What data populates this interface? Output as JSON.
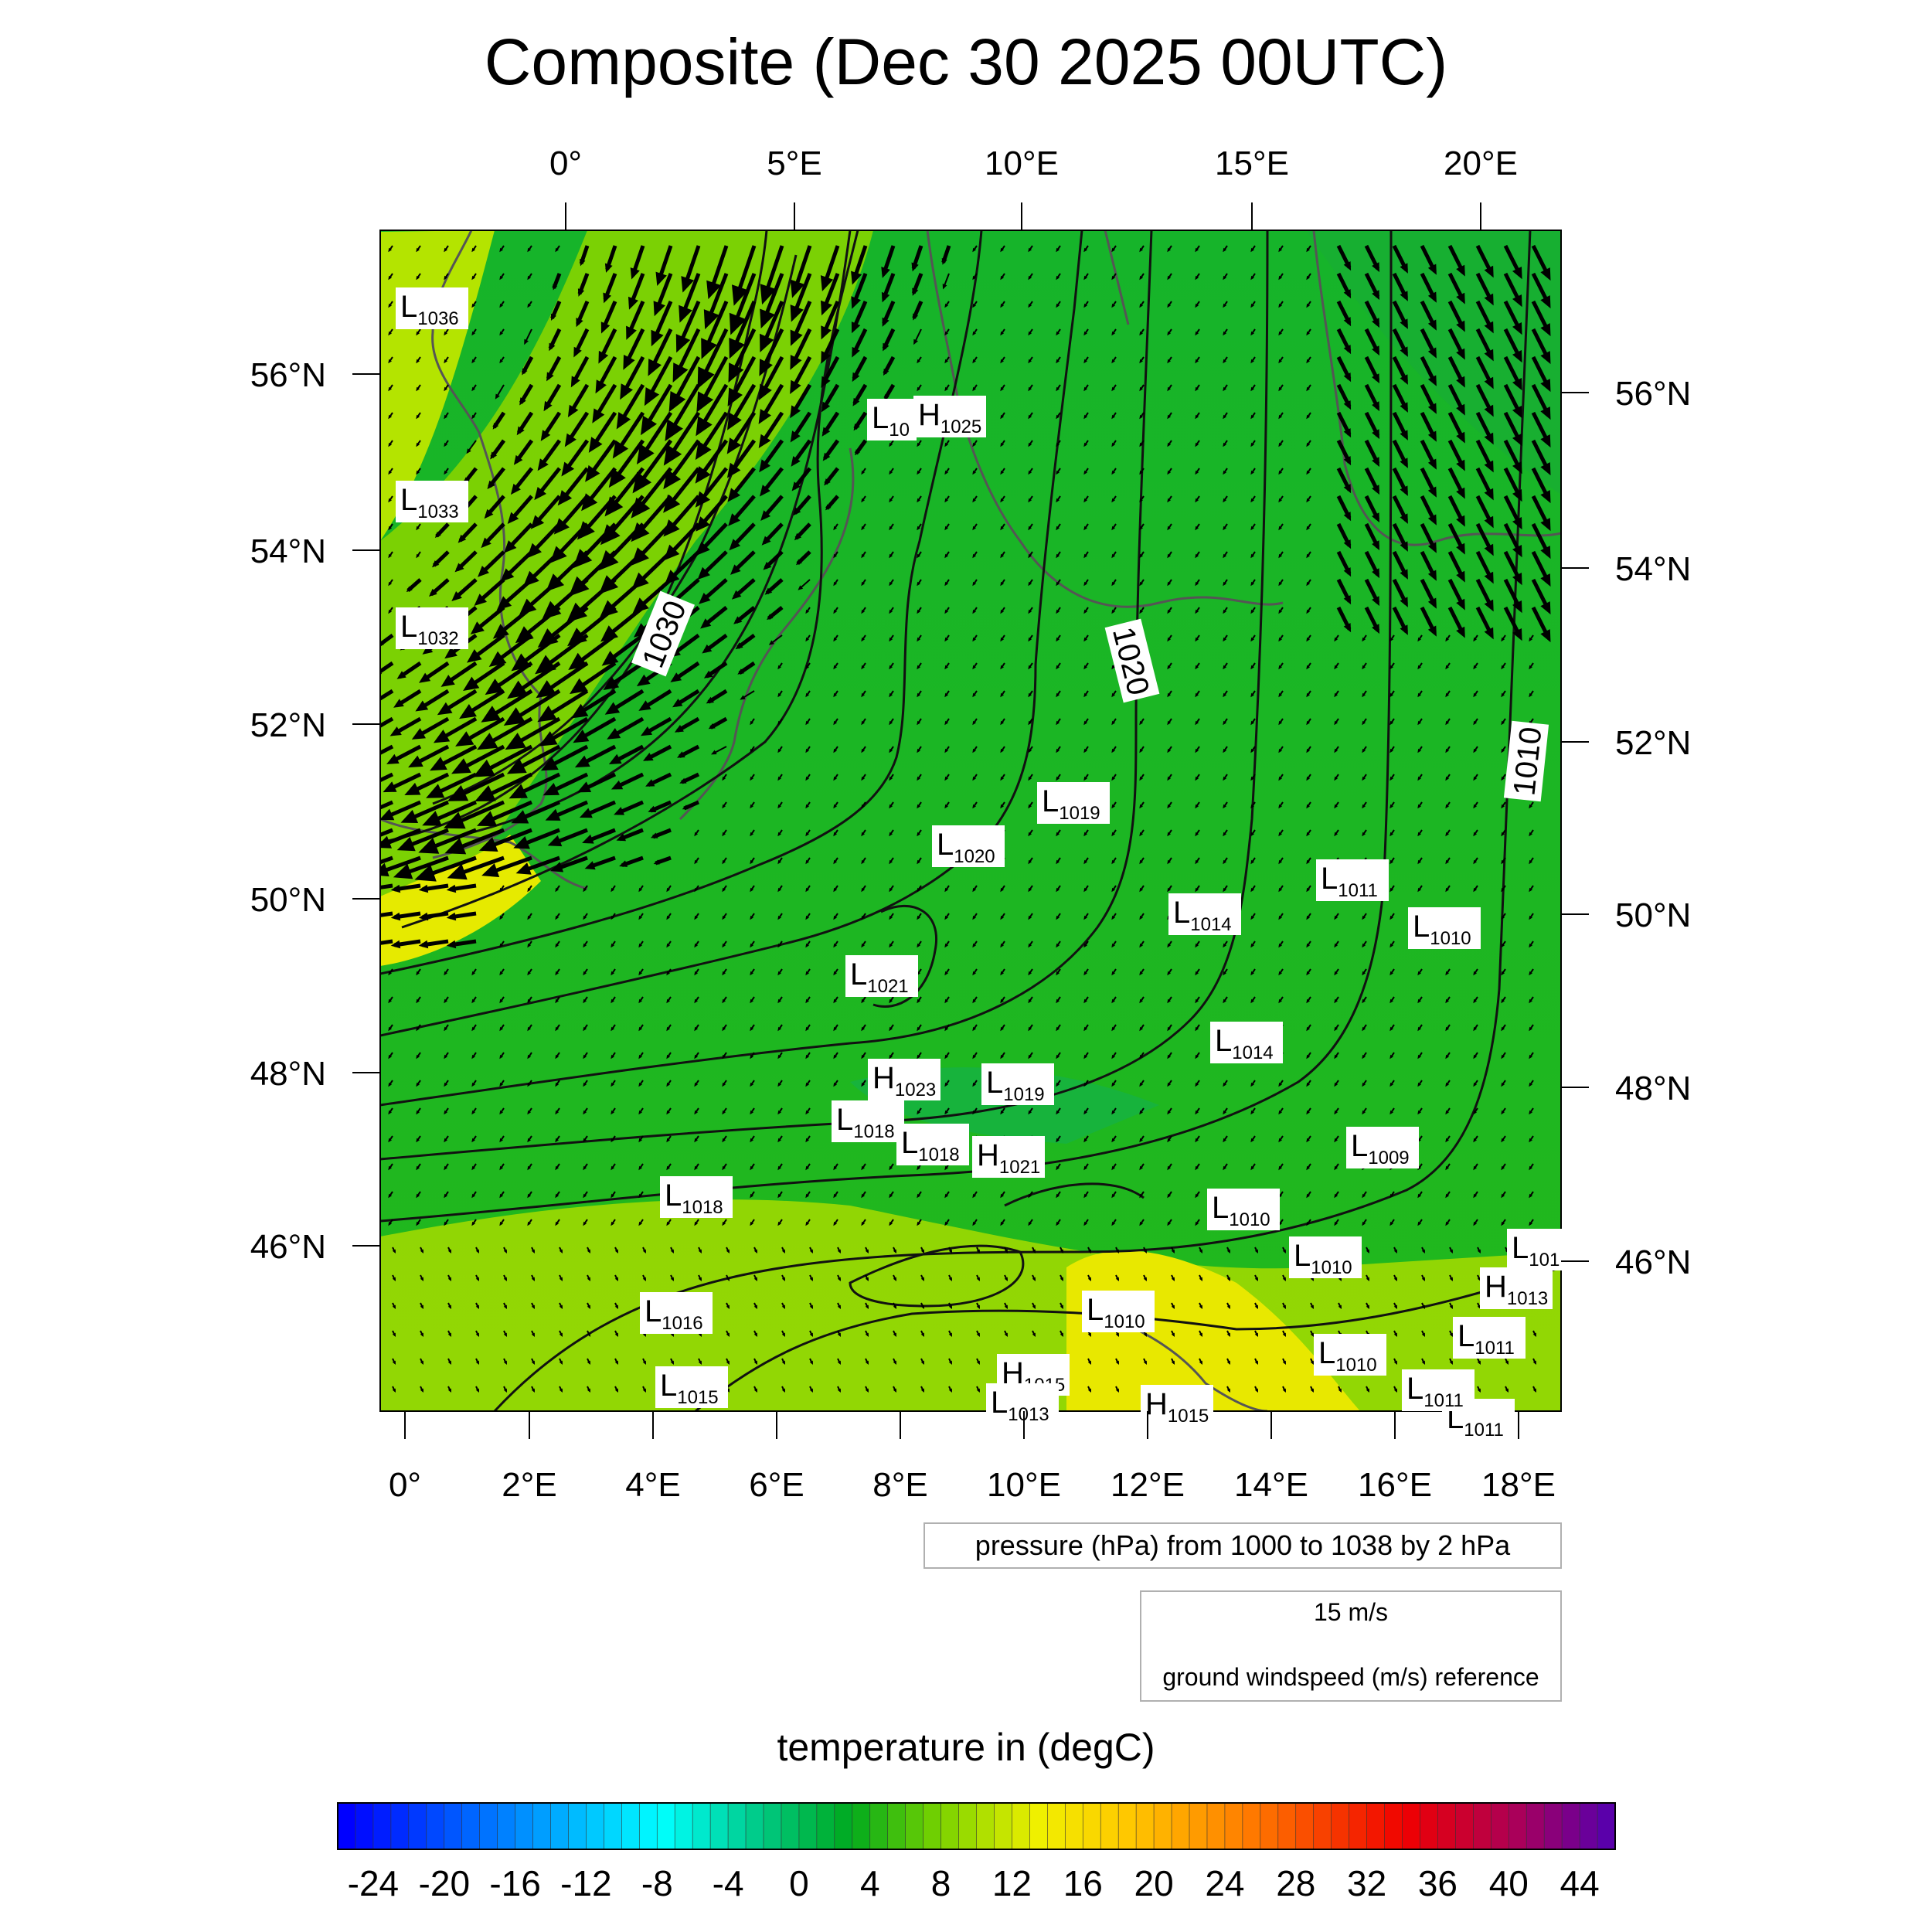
{
  "title": "Composite (Dec 30 2025 00UTC)",
  "top_axis": [
    "0°",
    "5°E",
    "10°E",
    "15°E",
    "20°E"
  ],
  "bottom_axis": [
    "0°",
    "2°E",
    "4°E",
    "6°E",
    "8°E",
    "10°E",
    "12°E",
    "14°E",
    "16°E",
    "18°E"
  ],
  "left_axis": [
    "56°N",
    "54°N",
    "52°N",
    "50°N",
    "48°N",
    "46°N"
  ],
  "right_axis": [
    "56°N",
    "54°N",
    "52°N",
    "50°N",
    "48°N",
    "46°N"
  ],
  "isobar_labels": [
    "1030",
    "1020",
    "1010"
  ],
  "pressure_centers": [
    {
      "kind": "L",
      "value": "1036"
    },
    {
      "kind": "L",
      "value": "1033"
    },
    {
      "kind": "L",
      "value": "1032"
    },
    {
      "kind": "L",
      "value": "10"
    },
    {
      "kind": "H",
      "value": "1025"
    },
    {
      "kind": "L",
      "value": "1019"
    },
    {
      "kind": "L",
      "value": "1020"
    },
    {
      "kind": "L",
      "value": "1011"
    },
    {
      "kind": "L",
      "value": "1014"
    },
    {
      "kind": "L",
      "value": "1010"
    },
    {
      "kind": "L",
      "value": "1021"
    },
    {
      "kind": "L",
      "value": "1014"
    },
    {
      "kind": "H",
      "value": "1023"
    },
    {
      "kind": "L",
      "value": "1019"
    },
    {
      "kind": "L",
      "value": "1018"
    },
    {
      "kind": "L",
      "value": "1018"
    },
    {
      "kind": "H",
      "value": "1021"
    },
    {
      "kind": "L",
      "value": "1009"
    },
    {
      "kind": "L",
      "value": "1018"
    },
    {
      "kind": "L",
      "value": "1010"
    },
    {
      "kind": "L",
      "value": "1010"
    },
    {
      "kind": "L",
      "value": "101"
    },
    {
      "kind": "L",
      "value": "1016"
    },
    {
      "kind": "L",
      "value": "1010"
    },
    {
      "kind": "H",
      "value": "1013"
    },
    {
      "kind": "L",
      "value": "1011"
    },
    {
      "kind": "L",
      "value": "1011"
    },
    {
      "kind": "L",
      "value": "1010"
    },
    {
      "kind": "H",
      "value": "1015"
    },
    {
      "kind": "L",
      "value": "1015"
    },
    {
      "kind": "L",
      "value": "1013"
    },
    {
      "kind": "H",
      "value": "1015"
    },
    {
      "kind": "L",
      "value": "1011"
    }
  ],
  "pressure_note": "pressure (hPa) from 1000 to 1038 by 2 hPa",
  "wind_reference": {
    "speed": "15 m/s",
    "description": "ground windspeed (m/s) reference"
  },
  "colorbar": {
    "title": "temperature in (degC)",
    "tick_labels": [
      "-24",
      "-20",
      "-16",
      "-12",
      "-8",
      "-4",
      "0",
      "4",
      "8",
      "12",
      "16",
      "20",
      "24",
      "28",
      "32",
      "36",
      "40",
      "44"
    ],
    "min": -26,
    "max": 46,
    "step": 1
  },
  "colors": {
    "land_green": "#22b81c",
    "warm_yellow": "#f2ee00",
    "jet_lime": "#9fe000",
    "coast": "#555555"
  }
}
